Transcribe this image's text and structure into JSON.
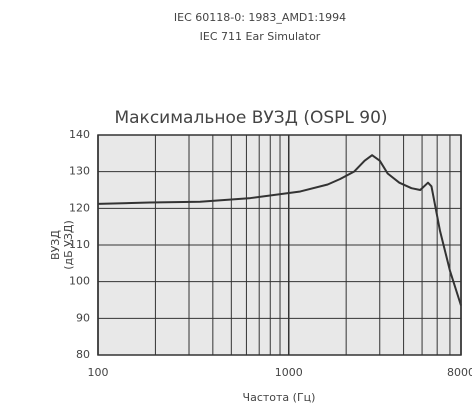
{
  "chart_data": {
    "type": "line",
    "subtitle": [
      "IEC 60118-0: 1983_AMD1:1994",
      "IEC 711 Ear Simulator"
    ],
    "title": "Максимальное ВУЗД (OSPL 90)",
    "ylabel": [
      "ВУЗД",
      "(дБ УЗД)"
    ],
    "xlabel": "Частота (Гц)",
    "x": [
      100,
      187,
      343,
      630,
      1150,
      1600,
      1860,
      2200,
      2500,
      2735,
      3000,
      3300,
      3800,
      4400,
      4890,
      5370,
      5600,
      6200,
      7000,
      8000
    ],
    "series": [
      {
        "name": "OSPL 90",
        "color": "#333333",
        "values": [
          121.2,
          121.6,
          121.8,
          122.8,
          124.6,
          126.5,
          128,
          130,
          133,
          134.5,
          133,
          129.5,
          127,
          125.5,
          125,
          127,
          126,
          114,
          103,
          93.5
        ]
      }
    ],
    "xscale": "log",
    "xlim": [
      100,
      8000
    ],
    "xticks": [
      100,
      1000,
      8000
    ],
    "xminorticks": [
      200,
      300,
      400,
      500,
      600,
      700,
      800,
      900,
      2000,
      3000,
      4000,
      5000,
      6000,
      7000
    ],
    "ylim": [
      80,
      140
    ],
    "yticks": [
      80,
      90,
      100,
      110,
      120,
      130,
      140
    ],
    "grid": true
  }
}
